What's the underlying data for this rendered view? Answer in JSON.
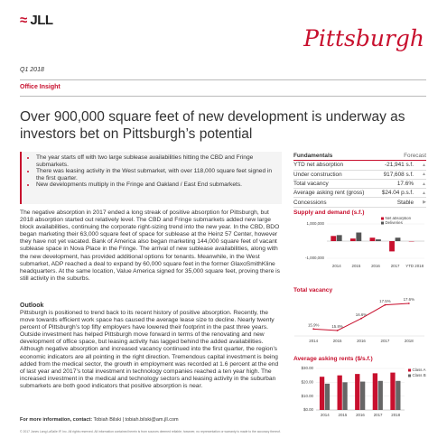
{
  "header": {
    "logo": "JLL",
    "city": "Pittsburgh",
    "period": "Q1 2018",
    "section": "Office Insight"
  },
  "headline": "Over 900,000 square feet of new development is underway as investors bet on Pittsburgh’s potential",
  "highlights": [
    "The year starts off with two large sublease availabilities hitting the CBD and Fringe submarkets.",
    "There was leasing activity in the West submarket, with over 118,000 square feet signed in the first quarter.",
    "New developments multiply in the Fringe and Oakland / East End submarkets."
  ],
  "body": {
    "paragraph": "The negative absorption in 2017 ended a long streak of positive absorption for Pittsburgh, but 2018 absorption started out relatively level. The CBD and Fringe submarkets added new large block availabilities, continuing the corporate right-sizing trend into the new year. In the CBD, BDO began marketing their 63,000 square feet of space for sublease at the Heinz 57 Center, however they have not yet vacated. Bank of America also began marketing 144,000 square feet of vacant sublease space in Nova Place in the Fringe. The arrival of new sublease availabilities, along with the new development, has provided additional options for tenants. Meanwhile, in the West submarket, ADP reached a deal to expand by 60,000 square feet in the former GlaxoSmithKline headquarters. At the same location, Value America signed for 35,000 square feet, proving there is still activity in the suburbs.",
    "outlook_heading": "Outlook",
    "outlook": "Pittsburgh is positioned to trend back to its recent history of positive absorption. Recently, the move towards efficient work space has caused the average lease size to decline. Nearly twenty percent of Pittsburgh’s top fifty employers have lowered their footprint in the past three years. Outside investment has helped Pittsburgh move forward in terms of the renovating and new development of office space, but leasing activity has lagged behind the added availabilities. Although negative absorption and increased vacancy continued into the first quarter, the region’s economic indicators are all pointing in the right direction. Tremendous capital investment is being added from the medical sector, the growth in employment was recorded at 1.6 percent at the end of last year and 2017’s total investment in technology companies reached a ten year high. The increased investment in the medical and technology sectors and leasing activity in the suburban submarkets are both good indicators that positive absorption is near."
  },
  "fundamentals": {
    "title": "Fundamentals",
    "forecast_label": "Forecast",
    "rows": [
      [
        "YTD net absorption",
        "-21,941 s.f."
      ],
      [
        "Under construction",
        "917,608 s.f."
      ],
      [
        "Total vacancy",
        "17.6%"
      ],
      [
        "Average asking rent (gross)",
        "$24.04 p.s.f."
      ],
      [
        "Concessions",
        "Stable"
      ]
    ]
  },
  "charts": [
    {
      "type": "bar",
      "title": "Supply and demand (s.f.)",
      "categories": [
        "2014",
        "2015",
        "2016",
        "2017",
        "YTD 2018"
      ],
      "series": [
        {
          "name": "Net absorption",
          "color": "#c8102e",
          "values": [
            300000,
            150000,
            200000,
            -600000,
            -21941
          ]
        },
        {
          "name": "Deliveries",
          "color": "#555555",
          "values": [
            350000,
            500000,
            100000,
            200000,
            0
          ]
        }
      ],
      "ylim": [
        -1000000,
        1000000
      ],
      "yticks": [
        {
          "value": 1000000,
          "label": "1,000,000"
        },
        {
          "value": -1000000,
          "label": "-1,000,000"
        }
      ]
    },
    {
      "type": "line",
      "title": "Total vacancy",
      "categories": [
        "2014",
        "2015",
        "2016",
        "2017",
        "2018"
      ],
      "series": [
        {
          "color": "#c8102e",
          "values": [
            15.9,
            15.8,
            16.6,
            17.5,
            17.6
          ],
          "value_labels": [
            "15.9%",
            "15.8%",
            "16.6%",
            "17.5%",
            "17.6%"
          ]
        }
      ]
    },
    {
      "type": "bar",
      "title": "Average asking rents ($/s.f.)",
      "categories": [
        "2014",
        "2015",
        "2016",
        "2017",
        "2018"
      ],
      "series": [
        {
          "name": "Class A",
          "color": "#c8102e",
          "values": [
            24,
            25,
            26,
            26.5,
            27
          ]
        },
        {
          "name": "Class B",
          "color": "#666666",
          "values": [
            19,
            20,
            20.5,
            21,
            21
          ]
        }
      ],
      "ylim": [
        0,
        30
      ],
      "yticks": [
        {
          "value": 30,
          "label": "$30.00"
        },
        {
          "value": 20,
          "label": "$20.00"
        },
        {
          "value": 10,
          "label": "$10.00"
        },
        {
          "value": 0,
          "label": "$0.00"
        }
      ]
    }
  ],
  "footer": {
    "contact_label": "For more information, contact:",
    "contact": "Tobiah Bilski | tobiah.bilski@am.jll.com",
    "copyright": "© 2017 Jones Lang LaSalle IP, Inc. All rights reserved. All information contained herein is from sources deemed reliable; however, no representation or warranty is made to the accuracy thereof."
  }
}
